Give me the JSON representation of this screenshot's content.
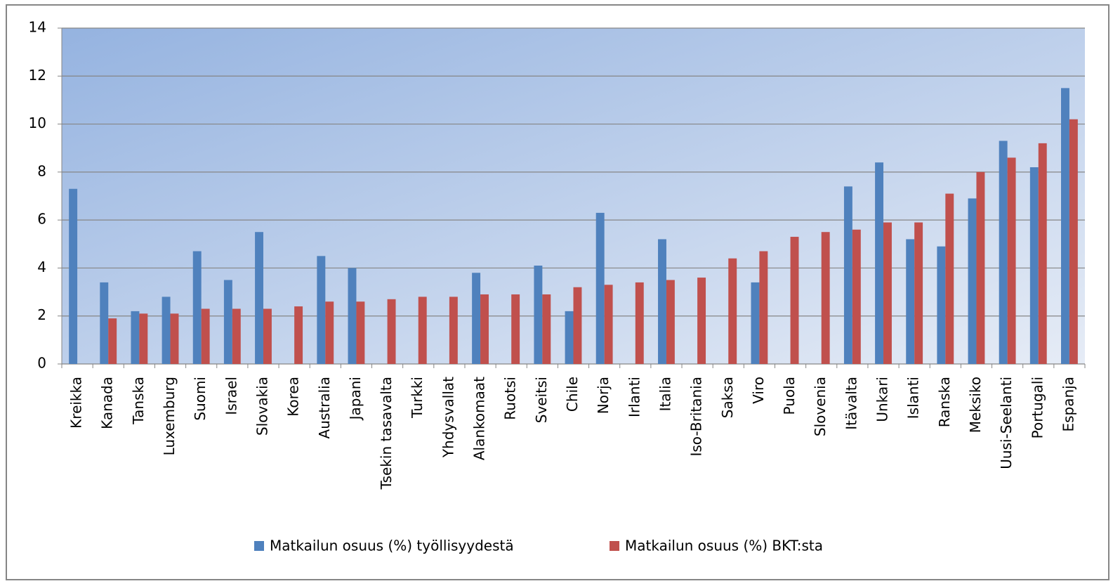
{
  "chart_data": {
    "type": "bar",
    "categories": [
      "Kreikka",
      "Kanada",
      "Tanska",
      "Luxemburg",
      "Suomi",
      "Israel",
      "Slovakia",
      "Korea",
      "Australia",
      "Japani",
      "Tsekin tasavalta",
      "Turkki",
      "Yhdysvallat",
      "Alankomaat",
      "Ruotsi",
      "Sveitsi",
      "Chile",
      "Norja",
      "Irlanti",
      "Italia",
      "Iso-Britania",
      "Saksa",
      "Viro",
      "Puola",
      "Slovenia",
      "Itävalta",
      "Unkari",
      "Islanti",
      "Ranska",
      "Meksiko",
      "Uusi-Seelanti",
      "Portugali",
      "Espanja"
    ],
    "series": [
      {
        "name": "Matkailun osuus (%) työllisyydestä",
        "color": "#4f81bd",
        "values": [
          7.3,
          3.4,
          2.2,
          2.8,
          4.7,
          3.5,
          5.5,
          null,
          4.5,
          4.0,
          null,
          null,
          null,
          3.8,
          null,
          4.1,
          2.2,
          6.3,
          null,
          5.2,
          null,
          null,
          3.4,
          null,
          null,
          7.4,
          8.4,
          5.2,
          4.9,
          6.9,
          9.3,
          8.2,
          11.5
        ]
      },
      {
        "name": "Matkailun osuus (%) BKT:sta",
        "color": "#c0504d",
        "values": [
          null,
          1.9,
          2.1,
          2.1,
          2.3,
          2.3,
          2.3,
          2.4,
          2.6,
          2.6,
          2.7,
          2.8,
          2.8,
          2.9,
          2.9,
          2.9,
          3.2,
          3.3,
          3.4,
          3.5,
          3.6,
          4.4,
          4.7,
          5.3,
          5.5,
          5.6,
          5.9,
          5.9,
          7.1,
          8.0,
          8.6,
          9.2,
          10.2
        ]
      }
    ],
    "ylim": [
      0,
      14
    ],
    "yticks": [
      0,
      2,
      4,
      6,
      8,
      10,
      12,
      14
    ],
    "grid": true,
    "legend": "bottom"
  }
}
